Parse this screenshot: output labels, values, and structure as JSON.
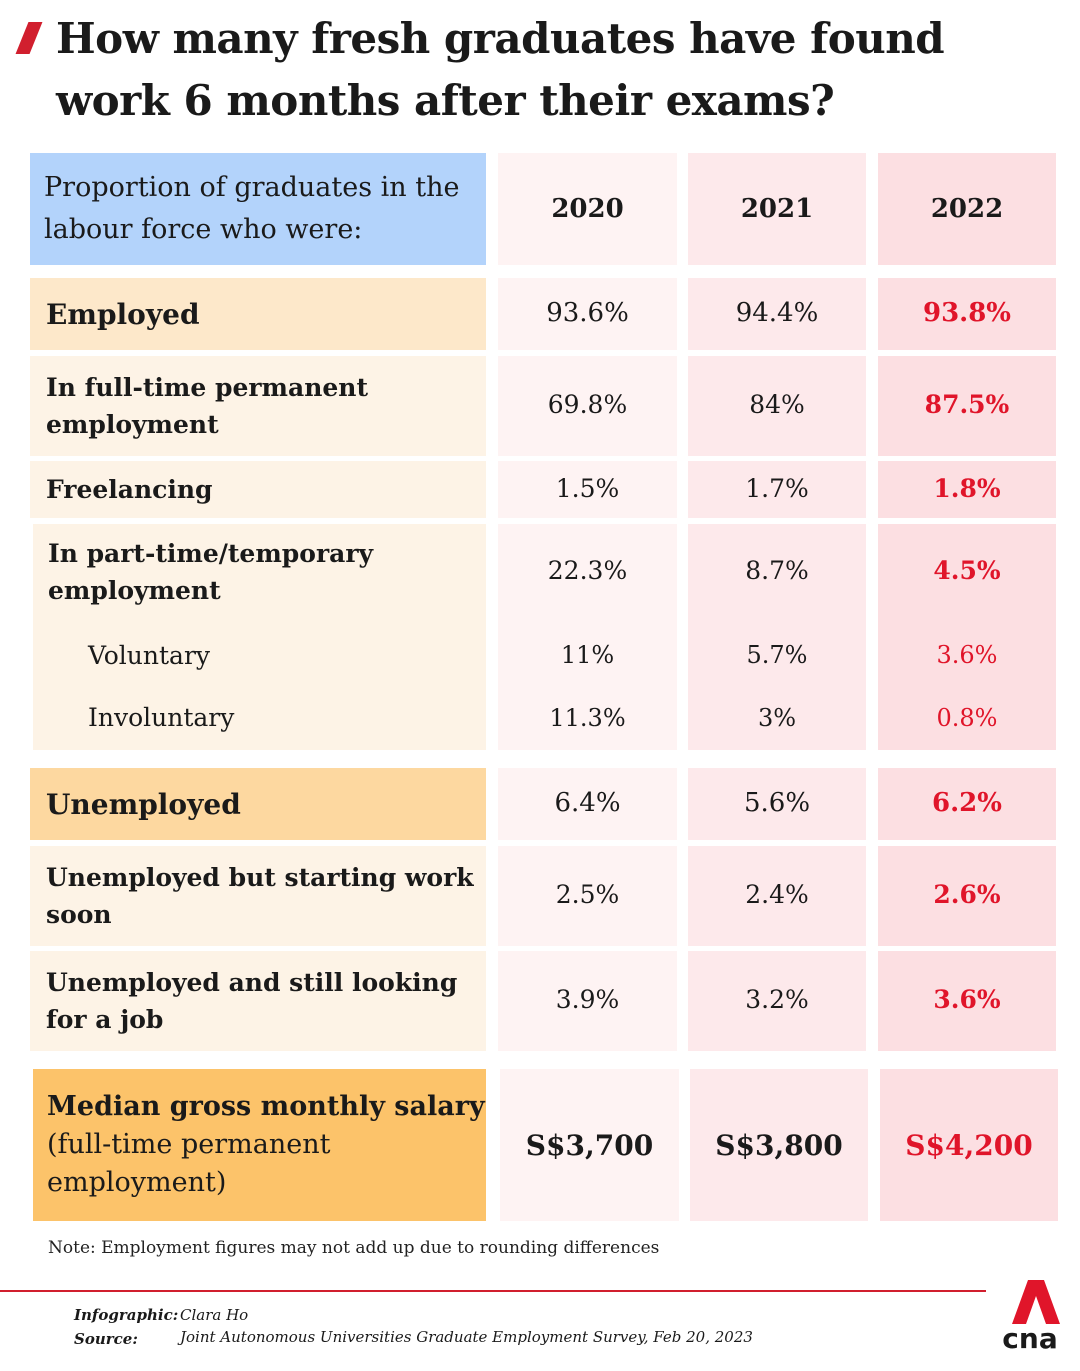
{
  "title": "How many fresh graduates have found work 6 months after their exams?",
  "chart_data": {
    "type": "table",
    "header_label": "Proportion of graduates in the labour force who were:",
    "columns": [
      "2020",
      "2021",
      "2022"
    ],
    "rows": [
      {
        "label": "Employed",
        "values": [
          "93.6%",
          "94.4%",
          "93.8%"
        ]
      },
      {
        "label": "In full-time permanent employment",
        "values": [
          "69.8%",
          "84%",
          "87.5%"
        ]
      },
      {
        "label": "Freelancing",
        "values": [
          "1.5%",
          "1.7%",
          "1.8%"
        ]
      },
      {
        "label": "In part-time/temporary employment",
        "values": [
          "22.3%",
          "8.7%",
          "4.5%"
        ]
      },
      {
        "label": "Voluntary",
        "values": [
          "11%",
          "5.7%",
          "3.6%"
        ]
      },
      {
        "label": "Involuntary",
        "values": [
          "11.3%",
          "3%",
          "0.8%"
        ]
      },
      {
        "label": "Unemployed",
        "values": [
          "6.4%",
          "5.6%",
          "6.2%"
        ]
      },
      {
        "label": "Unemployed but starting work soon",
        "values": [
          "2.5%",
          "2.4%",
          "2.6%"
        ]
      },
      {
        "label": "Unemployed and still looking for a job",
        "values": [
          "3.9%",
          "3.2%",
          "3.6%"
        ]
      }
    ],
    "salary": {
      "label_bold": "Median gross monthly salary",
      "label_rest": "(full-time permanent employment)",
      "values": [
        "S$3,700",
        "S$3,800",
        "S$4,200"
      ]
    }
  },
  "note": "Note: Employment figures may not add up due to rounding differences",
  "credits": {
    "infographic_key": "Infographic:",
    "infographic_value": "Clara Ho",
    "source_key": "Source:",
    "source_value": "Joint Autonomous Universities Graduate Employment Survey, Feb 20, 2023"
  },
  "logo_text": "cna",
  "colors": {
    "accent_red": "#e0152a",
    "header_blue": "#b3d3fb",
    "col_2020": "#fef3f3",
    "col_2021": "#fde9eb",
    "col_2022": "#fcdfe2",
    "label_light": "#fdf3e6",
    "label_mid": "#fde8ca",
    "label_strong": "#fdd8a0",
    "label_salary": "#fcc36a"
  }
}
